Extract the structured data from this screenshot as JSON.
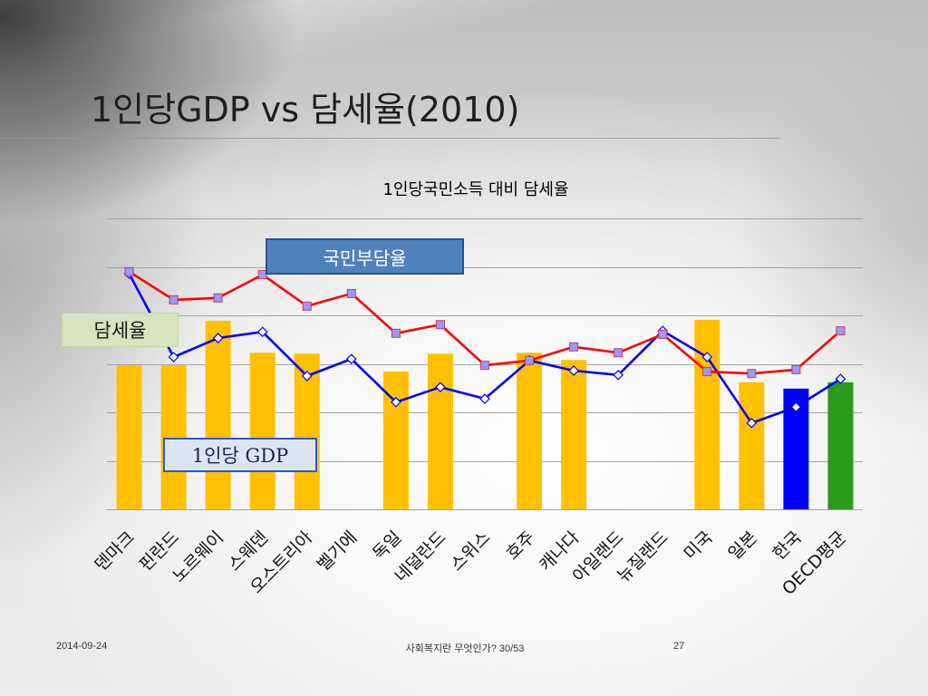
{
  "slide": {
    "title": "1인당GDP vs 담세율(2010)",
    "footer_date": "2014-09-24",
    "footer_center": "사회복지란 무엇인가? 30/53",
    "footer_page": "27"
  },
  "colors": {
    "tax_burden_callout_fill": "#4f81bd",
    "tax_ratio_callout_fill": "#d7e4bd",
    "gdp_callout_fill": "#dce6f2",
    "gdp_callout_border": "#2f55d4"
  },
  "chart_data": {
    "type": "bar",
    "title": "1인당국민소득 대비 담세율",
    "xlabel": "",
    "ylabel": "",
    "categories": [
      "덴마크",
      "핀란드",
      "노르웨이",
      "스웨덴",
      "오스트리아",
      "벨기에",
      "독일",
      "네덜란드",
      "스위스",
      "호주",
      "캐나다",
      "아일랜드",
      "뉴질랜드",
      "미국",
      "일본",
      "한국",
      "OECD평균"
    ],
    "ylim": [
      0,
      6
    ],
    "grid": true,
    "series": [
      {
        "name": "1인당 GDP",
        "type": "bar",
        "color": "#ffc000",
        "point_colors": [
          "#ffc000",
          "#ffc000",
          "#ffc000",
          "#ffc000",
          "#ffc000",
          "#ffc000",
          "#ffc000",
          "#ffc000",
          "#ffc000",
          "#ffc000",
          "#ffc000",
          "#ffc000",
          "#ffc000",
          "#ffc000",
          "#ffc000",
          "#0000ff",
          "#2a9a1a"
        ],
        "values": [
          2.97,
          2.97,
          3.89,
          3.23,
          3.21,
          null,
          2.84,
          3.21,
          null,
          3.23,
          3.08,
          null,
          null,
          3.91,
          2.62,
          2.49,
          2.62
        ]
      },
      {
        "name": "국민부담율",
        "type": "line",
        "color": "#ff0000",
        "marker": "square",
        "marker_fill": "#9999ff",
        "values": [
          4.9,
          4.32,
          4.36,
          4.84,
          4.19,
          4.45,
          3.63,
          3.81,
          2.97,
          3.07,
          3.35,
          3.23,
          3.61,
          2.84,
          2.8,
          2.88,
          3.68
        ]
      },
      {
        "name": "담세율",
        "type": "line",
        "color": "#0000ff",
        "marker": "diamond",
        "marker_fill": "#f4f4ff",
        "values": [
          4.86,
          3.14,
          3.53,
          3.66,
          2.75,
          3.1,
          2.21,
          2.52,
          2.28,
          3.07,
          2.86,
          2.77,
          3.68,
          3.14,
          1.78,
          2.11,
          2.69
        ]
      }
    ]
  }
}
